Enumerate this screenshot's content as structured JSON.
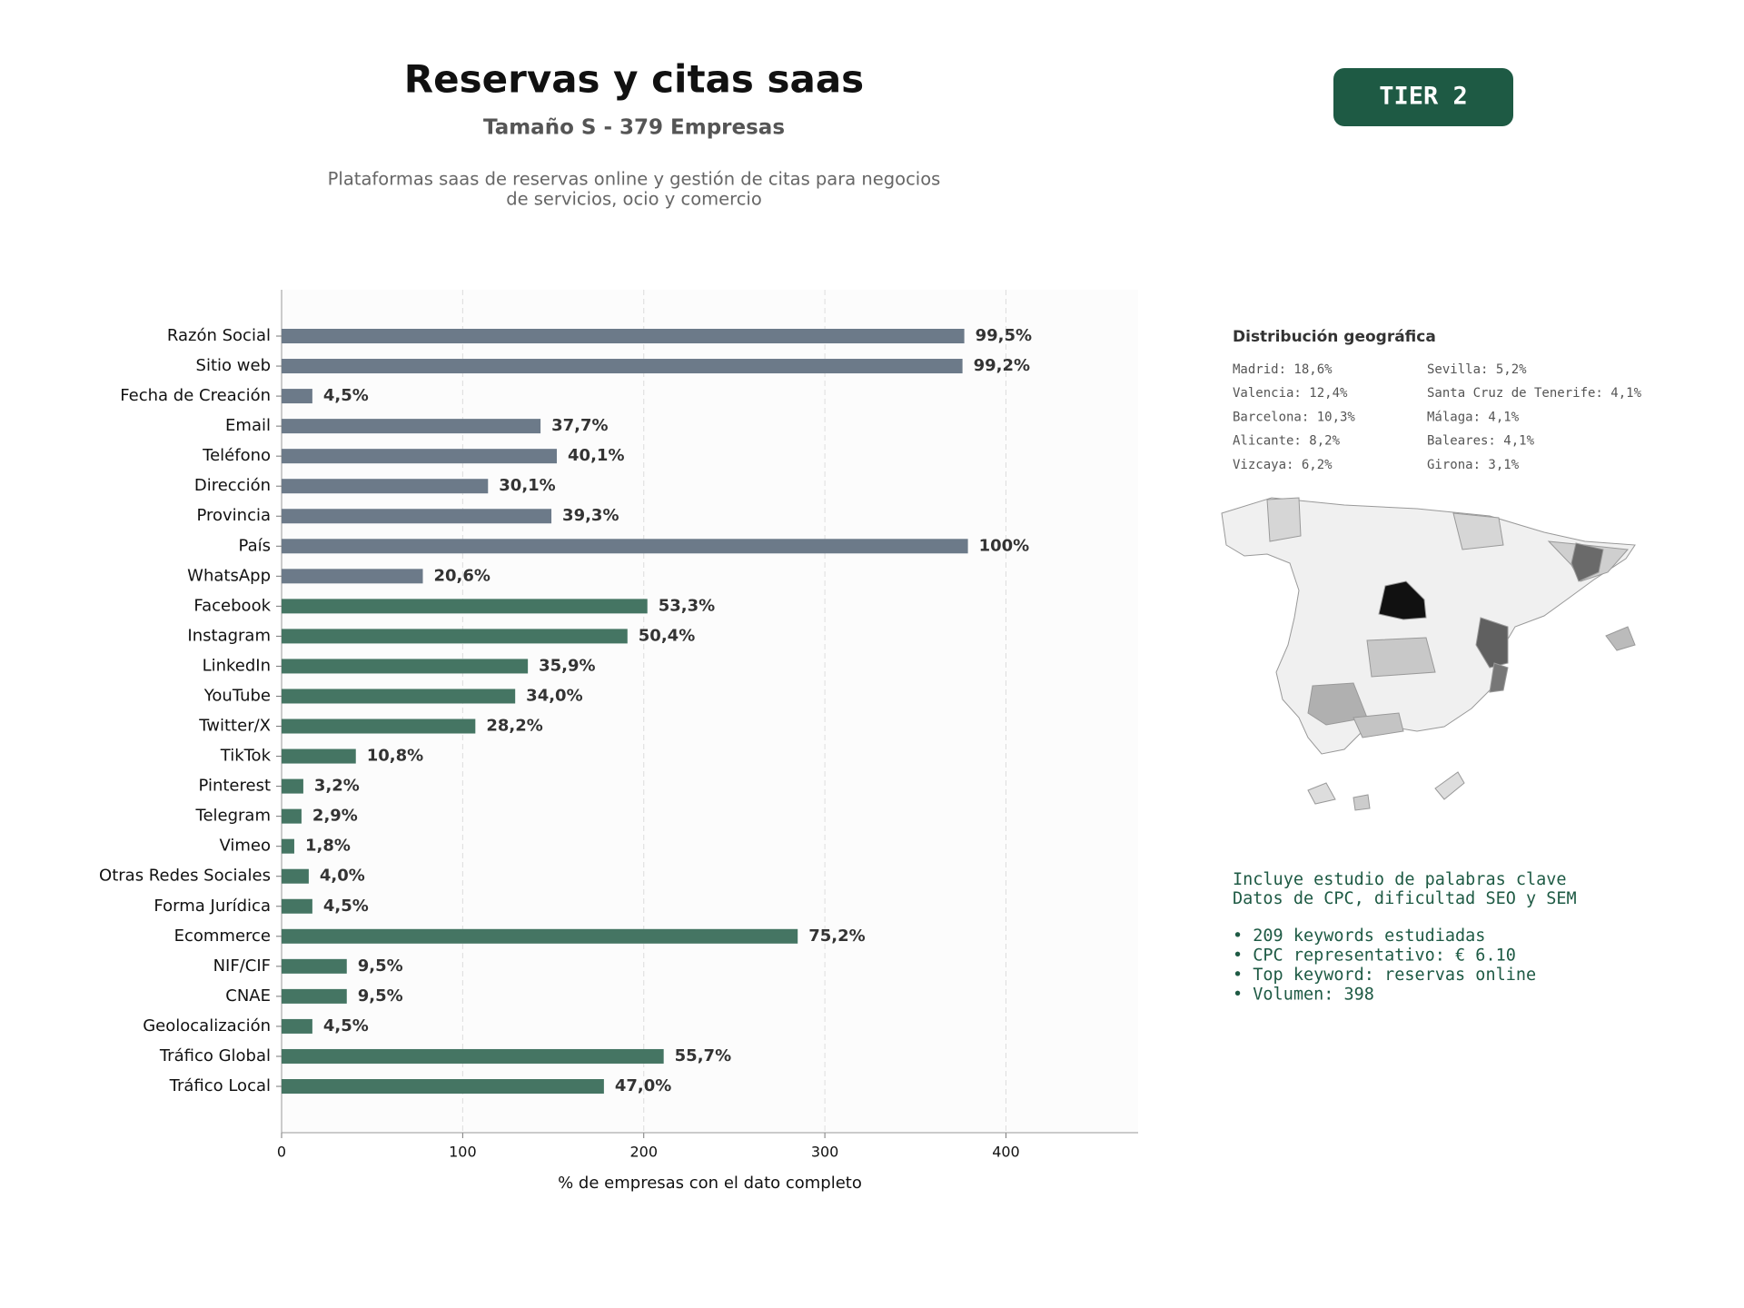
{
  "header": {
    "title": "Reservas y citas saas",
    "subtitle": "Tamaño S - 379 Empresas",
    "description": [
      "Plataformas saas de reservas online y gestión de citas para negocios",
      "de servicios, ocio y comercio"
    ]
  },
  "badge": "TIER 2",
  "chart_data": {
    "type": "hbar",
    "xlabel": "% de empresas con el dato completo",
    "categories": [
      "Razón Social",
      "Sitio web",
      "Fecha de Creación",
      "Email",
      "Teléfono",
      "Dirección",
      "Provincia",
      "País",
      "WhatsApp",
      "Facebook",
      "Instagram",
      "LinkedIn",
      "YouTube",
      "Twitter/X",
      "TikTok",
      "Pinterest",
      "Telegram",
      "Vimeo",
      "Otras Redes Sociales",
      "Forma Jurídica",
      "Ecommerce",
      "NIF/CIF",
      "CNAE",
      "Geolocalización",
      "Tráfico Global",
      "Tráfico Local"
    ],
    "values": [
      377,
      376,
      17,
      143,
      152,
      114,
      149,
      379,
      78,
      202,
      191,
      136,
      129,
      107,
      41,
      12,
      11,
      7,
      15,
      17,
      285,
      36,
      36,
      17,
      211,
      178
    ],
    "value_labels": [
      "99,5%",
      "99,2%",
      "4,5%",
      "37,7%",
      "40,1%",
      "30,1%",
      "39,3%",
      "100%",
      "20,6%",
      "53,3%",
      "50,4%",
      "35,9%",
      "34,0%",
      "28,2%",
      "10,8%",
      "3,2%",
      "2,9%",
      "1,8%",
      "4,0%",
      "4,5%",
      "75,2%",
      "9,5%",
      "9,5%",
      "4,5%",
      "55,7%",
      "47,0%"
    ],
    "colors": [
      "#6c7a89",
      "#6c7a89",
      "#6c7a89",
      "#6c7a89",
      "#6c7a89",
      "#6c7a89",
      "#6c7a89",
      "#6c7a89",
      "#6c7a89",
      "#457563",
      "#457563",
      "#457563",
      "#457563",
      "#457563",
      "#457563",
      "#457563",
      "#457563",
      "#457563",
      "#457563",
      "#457563",
      "#457563",
      "#457563",
      "#457563",
      "#457563",
      "#457563",
      "#457563"
    ],
    "xlim": [
      0,
      473
    ],
    "xticks": [
      0,
      100,
      200,
      300,
      400
    ],
    "grid": true
  },
  "geo": {
    "title": "Distribución geográfica",
    "columns": [
      [
        "Madrid: 18,6%",
        "Valencia: 12,4%",
        "Barcelona: 10,3%",
        "Alicante: 8,2%",
        "Vizcaya: 6,2%"
      ],
      [
        "Sevilla: 5,2%",
        "Santa Cruz de Tenerife: 4,1%",
        "Málaga: 4,1%",
        "Baleares: 4,1%",
        "Girona: 3,1%"
      ]
    ]
  },
  "keywords": {
    "lines": [
      "Incluye estudio de palabras clave",
      "Datos de CPC, dificultad SEO y SEM"
    ],
    "bullets": [
      "• 209 keywords estudiadas",
      "• CPC representativo: € 6.10",
      "• Top keyword: reservas online",
      "• Volumen: 398"
    ]
  }
}
